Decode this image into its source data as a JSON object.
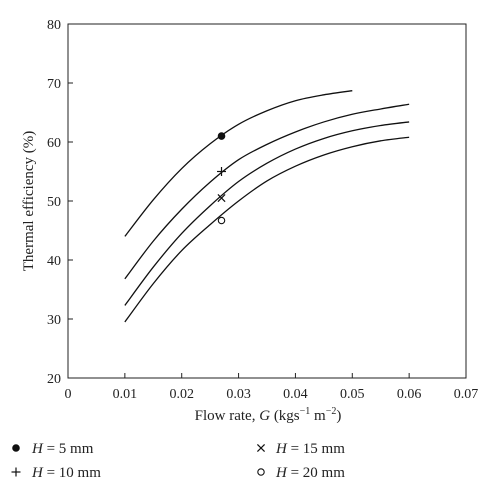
{
  "chart_data": {
    "type": "line",
    "title": "",
    "xlabel": "Flow rate, G (kgs⁻¹ m⁻²)",
    "xlabel_parts": {
      "pre": "Flow rate, ",
      "var": "G",
      "unit_open": " (kgs",
      "exp1": "−1",
      "unit_mid": " m",
      "exp2": "−2",
      "unit_close": ")"
    },
    "ylabel": "Thermal efficiency (%)",
    "xlim": [
      0,
      0.07
    ],
    "ylim": [
      20,
      80
    ],
    "x_ticks": [
      0,
      0.01,
      0.02,
      0.03,
      0.04,
      0.05,
      0.06,
      0.07
    ],
    "x_tick_labels": [
      "0",
      "0.01",
      "0.02",
      "0.03",
      "0.04",
      "0.05",
      "0.06",
      "0.07"
    ],
    "y_ticks": [
      20,
      30,
      40,
      50,
      60,
      70,
      80
    ],
    "y_tick_labels": [
      "20",
      "30",
      "40",
      "50",
      "60",
      "70",
      "80"
    ],
    "grid": false,
    "legend_position": "bottom",
    "series": [
      {
        "name": "H = 5 mm",
        "var": "H",
        "rest": " = 5 mm",
        "marker": "filled-circle",
        "marker_point": [
          0.027,
          61
        ],
        "x": [
          0.01,
          0.015,
          0.02,
          0.025,
          0.03,
          0.035,
          0.04,
          0.045,
          0.05
        ],
        "values": [
          44.0,
          50.2,
          55.5,
          59.7,
          63.0,
          65.3,
          67.0,
          68.0,
          68.7
        ]
      },
      {
        "name": "H = 10 mm",
        "var": "H",
        "rest": " = 10 mm",
        "marker": "plus",
        "marker_point": [
          0.027,
          55
        ],
        "x": [
          0.01,
          0.015,
          0.02,
          0.025,
          0.03,
          0.035,
          0.04,
          0.045,
          0.05,
          0.055,
          0.06
        ],
        "values": [
          36.8,
          43.2,
          48.6,
          53.2,
          57.0,
          59.6,
          61.7,
          63.4,
          64.7,
          65.6,
          66.4
        ]
      },
      {
        "name": "H = 15 mm",
        "var": "H",
        "rest": " = 15 mm",
        "marker": "cross",
        "marker_point": [
          0.027,
          50.5
        ],
        "x": [
          0.01,
          0.015,
          0.02,
          0.025,
          0.03,
          0.035,
          0.04,
          0.045,
          0.05,
          0.055,
          0.06
        ],
        "values": [
          32.3,
          38.8,
          44.5,
          49.2,
          53.3,
          56.4,
          58.8,
          60.6,
          61.9,
          62.8,
          63.4
        ]
      },
      {
        "name": "H = 20 mm",
        "var": "H",
        "rest": " = 20 mm",
        "marker": "open-circle",
        "marker_point": [
          0.027,
          46.7
        ],
        "x": [
          0.01,
          0.015,
          0.02,
          0.025,
          0.03,
          0.035,
          0.04,
          0.045,
          0.05,
          0.055,
          0.06
        ],
        "values": [
          29.5,
          36.0,
          41.6,
          46.0,
          50.0,
          53.4,
          55.9,
          57.8,
          59.2,
          60.2,
          60.8
        ]
      }
    ]
  }
}
